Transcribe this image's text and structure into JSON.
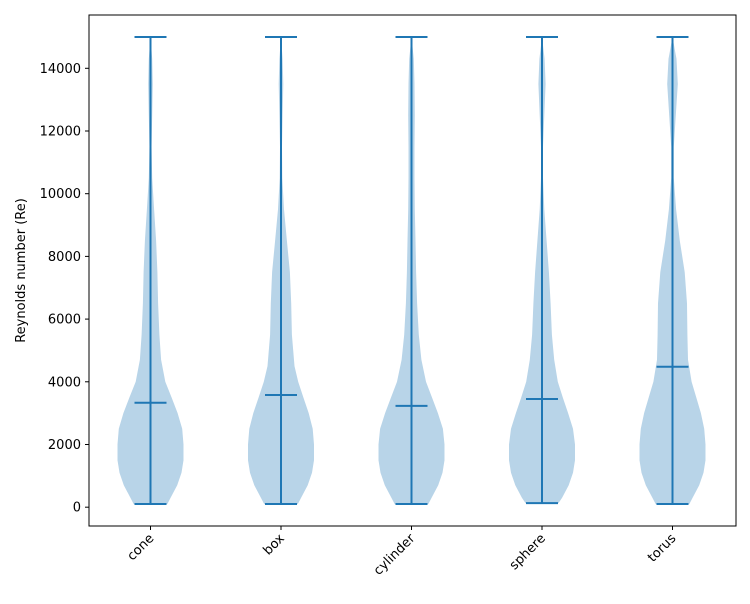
{
  "chart_data": {
    "type": "violin",
    "title": "",
    "xlabel": "",
    "ylabel": "Reynolds number (Re)",
    "ylim": [
      -600,
      15700
    ],
    "yticks": [
      0,
      2000,
      4000,
      6000,
      8000,
      10000,
      12000,
      14000
    ],
    "categories": [
      "cone",
      "box",
      "cylinder",
      "sphere",
      "torus"
    ],
    "fill_color": "#b8d4e8",
    "line_color": "#1f77b4",
    "violins": [
      {
        "name": "cone",
        "min": 100,
        "max": 15000,
        "median": 3330,
        "density": [
          [
            100,
            0.51
          ],
          [
            300,
            0.61
          ],
          [
            700,
            0.81
          ],
          [
            1100,
            0.94
          ],
          [
            1500,
            1.0
          ],
          [
            2000,
            1.0
          ],
          [
            2500,
            0.96
          ],
          [
            3000,
            0.82
          ],
          [
            3500,
            0.64
          ],
          [
            4000,
            0.45
          ],
          [
            4700,
            0.32
          ],
          [
            5500,
            0.27
          ],
          [
            6500,
            0.23
          ],
          [
            7500,
            0.21
          ],
          [
            8500,
            0.17
          ],
          [
            9500,
            0.11
          ],
          [
            10500,
            0.05
          ],
          [
            11500,
            0.03
          ],
          [
            12500,
            0.05
          ],
          [
            13500,
            0.07
          ],
          [
            14300,
            0.05
          ],
          [
            15000,
            0.0
          ]
        ]
      },
      {
        "name": "box",
        "min": 100,
        "max": 15000,
        "median": 3580,
        "density": [
          [
            100,
            0.51
          ],
          [
            300,
            0.61
          ],
          [
            700,
            0.81
          ],
          [
            1100,
            0.94
          ],
          [
            1500,
            1.0
          ],
          [
            2000,
            1.0
          ],
          [
            2500,
            0.96
          ],
          [
            3000,
            0.84
          ],
          [
            3500,
            0.68
          ],
          [
            4000,
            0.52
          ],
          [
            4500,
            0.41
          ],
          [
            5500,
            0.33
          ],
          [
            6500,
            0.31
          ],
          [
            7500,
            0.27
          ],
          [
            8500,
            0.18
          ],
          [
            9500,
            0.09
          ],
          [
            10500,
            0.04
          ],
          [
            11500,
            0.03
          ],
          [
            12500,
            0.05
          ],
          [
            13500,
            0.07
          ],
          [
            14300,
            0.05
          ],
          [
            15000,
            0.0
          ]
        ]
      },
      {
        "name": "cylinder",
        "min": 100,
        "max": 15000,
        "median": 3230,
        "density": [
          [
            100,
            0.51
          ],
          [
            300,
            0.61
          ],
          [
            700,
            0.81
          ],
          [
            1100,
            0.94
          ],
          [
            1500,
            1.0
          ],
          [
            2000,
            1.0
          ],
          [
            2500,
            0.95
          ],
          [
            3000,
            0.8
          ],
          [
            3500,
            0.62
          ],
          [
            4000,
            0.44
          ],
          [
            4700,
            0.3
          ],
          [
            5500,
            0.22
          ],
          [
            6500,
            0.17
          ],
          [
            7500,
            0.14
          ],
          [
            8500,
            0.12
          ],
          [
            9500,
            0.1
          ],
          [
            10500,
            0.09
          ],
          [
            11500,
            0.09
          ],
          [
            12500,
            0.1
          ],
          [
            13500,
            0.09
          ],
          [
            14300,
            0.07
          ],
          [
            15000,
            0.0
          ]
        ]
      },
      {
        "name": "sphere",
        "min": 130,
        "max": 15000,
        "median": 3450,
        "density": [
          [
            130,
            0.5
          ],
          [
            300,
            0.61
          ],
          [
            700,
            0.81
          ],
          [
            1100,
            0.94
          ],
          [
            1500,
            1.0
          ],
          [
            2000,
            1.0
          ],
          [
            2500,
            0.94
          ],
          [
            3000,
            0.79
          ],
          [
            3500,
            0.63
          ],
          [
            4000,
            0.48
          ],
          [
            4700,
            0.37
          ],
          [
            5500,
            0.3
          ],
          [
            6500,
            0.26
          ],
          [
            7500,
            0.21
          ],
          [
            8500,
            0.14
          ],
          [
            9500,
            0.07
          ],
          [
            10500,
            0.03
          ],
          [
            11500,
            0.03
          ],
          [
            12500,
            0.07
          ],
          [
            13500,
            0.11
          ],
          [
            14300,
            0.08
          ],
          [
            15000,
            0.0
          ]
        ]
      },
      {
        "name": "torus",
        "min": 100,
        "max": 15000,
        "median": 4480,
        "density": [
          [
            100,
            0.51
          ],
          [
            300,
            0.61
          ],
          [
            700,
            0.81
          ],
          [
            1100,
            0.94
          ],
          [
            1500,
            1.0
          ],
          [
            2000,
            1.0
          ],
          [
            2500,
            0.96
          ],
          [
            3000,
            0.86
          ],
          [
            3500,
            0.72
          ],
          [
            4000,
            0.58
          ],
          [
            4700,
            0.47
          ],
          [
            5500,
            0.45
          ],
          [
            6500,
            0.44
          ],
          [
            7500,
            0.37
          ],
          [
            8500,
            0.22
          ],
          [
            9500,
            0.11
          ],
          [
            10500,
            0.04
          ],
          [
            11500,
            0.04
          ],
          [
            12500,
            0.1
          ],
          [
            13500,
            0.16
          ],
          [
            14300,
            0.12
          ],
          [
            15000,
            0.0
          ]
        ]
      }
    ]
  }
}
